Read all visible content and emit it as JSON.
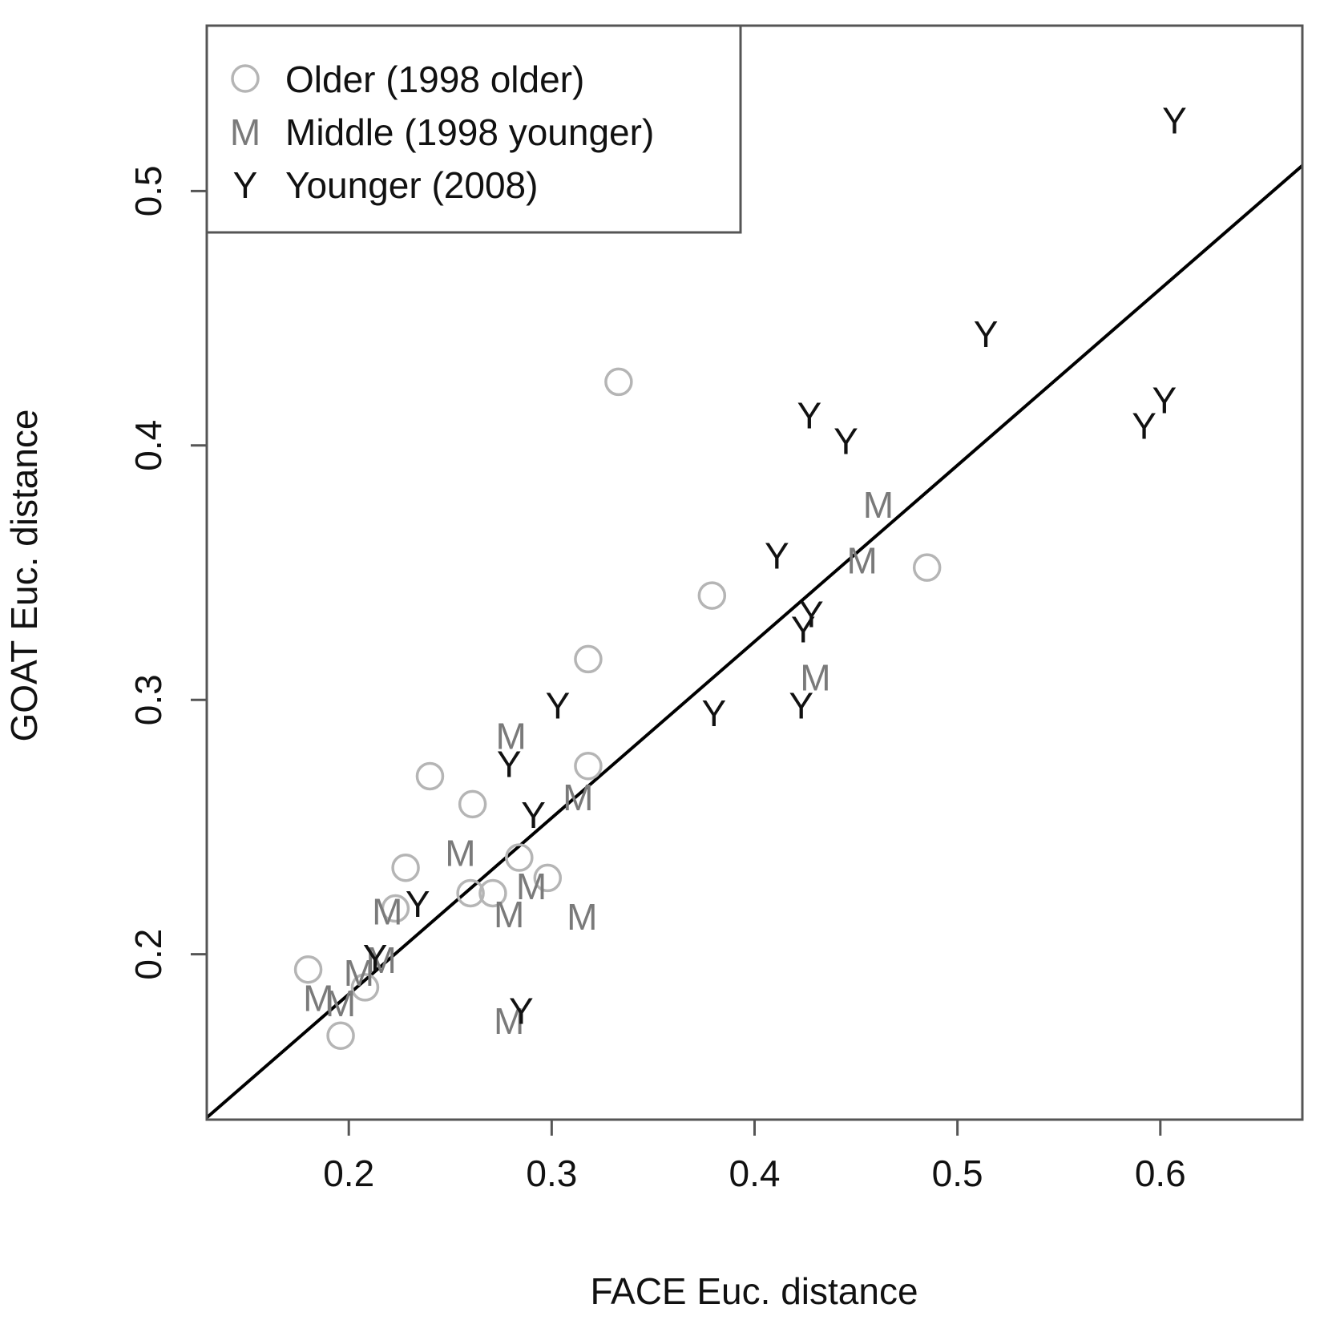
{
  "chart_data": {
    "type": "scatter",
    "title": "",
    "xlabel": "FACE Euc. distance",
    "ylabel": "GOAT Euc. distance",
    "xlim": [
      0.13,
      0.67
    ],
    "ylim": [
      0.135,
      0.565
    ],
    "x_ticks": [
      0.2,
      0.3,
      0.4,
      0.5,
      0.6
    ],
    "x_tick_labels": [
      "0.2",
      "0.3",
      "0.4",
      "0.5",
      "0.6"
    ],
    "y_ticks": [
      0.2,
      0.3,
      0.4,
      0.5
    ],
    "y_tick_labels": [
      "0.2",
      "0.3",
      "0.4",
      "0.5"
    ],
    "grid": false,
    "legend_position": "top-left",
    "series": [
      {
        "name": "Older (1998 older)",
        "marker": "O",
        "marker_symbol": "circle",
        "color": "#b5b5b5",
        "x": [
          0.333,
          0.485,
          0.379,
          0.318,
          0.318,
          0.24,
          0.261,
          0.228,
          0.223,
          0.26,
          0.271,
          0.284,
          0.298,
          0.18,
          0.208,
          0.196
        ],
        "y": [
          0.425,
          0.352,
          0.341,
          0.316,
          0.274,
          0.27,
          0.259,
          0.234,
          0.218,
          0.224,
          0.224,
          0.238,
          0.23,
          0.194,
          0.187,
          0.168
        ]
      },
      {
        "name": "Middle (1998 younger)",
        "marker": "M",
        "color": "#7a7a7a",
        "x": [
          0.461,
          0.453,
          0.43,
          0.28,
          0.313,
          0.255,
          0.29,
          0.219,
          0.279,
          0.315,
          0.216,
          0.205,
          0.185,
          0.196,
          0.279
        ],
        "y": [
          0.377,
          0.355,
          0.309,
          0.286,
          0.262,
          0.24,
          0.227,
          0.217,
          0.216,
          0.215,
          0.198,
          0.193,
          0.183,
          0.181,
          0.174
        ]
      },
      {
        "name": "Younger (2008)",
        "marker": "Y",
        "color": "#111111",
        "x": [
          0.607,
          0.514,
          0.602,
          0.592,
          0.427,
          0.445,
          0.411,
          0.428,
          0.424,
          0.303,
          0.38,
          0.423,
          0.279,
          0.291,
          0.234,
          0.213,
          0.285
        ],
        "y": [
          0.528,
          0.444,
          0.418,
          0.408,
          0.412,
          0.402,
          0.357,
          0.334,
          0.328,
          0.298,
          0.295,
          0.298,
          0.275,
          0.255,
          0.22,
          0.199,
          0.178
        ]
      }
    ],
    "fit_line": {
      "type": "linear",
      "intercept": 0.0457,
      "slope": 0.693,
      "color": "#000000"
    }
  }
}
